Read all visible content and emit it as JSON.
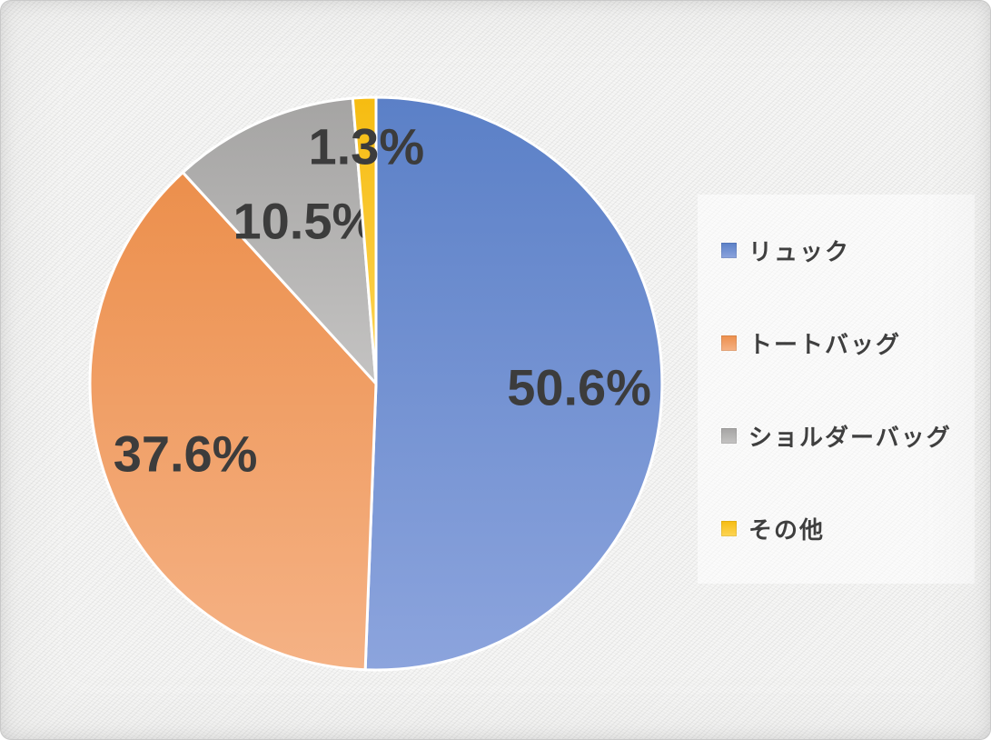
{
  "chart_data": {
    "type": "pie",
    "title": "",
    "labels": [
      "リュック",
      "トートバッグ",
      "ショルダーバッグ",
      "その他"
    ],
    "values": [
      50.6,
      37.6,
      10.5,
      1.3
    ],
    "data_labels": [
      "50.6%",
      "37.6%",
      "10.5%",
      "1.3%"
    ],
    "colors": [
      "#6E92D2",
      "#F09A5E",
      "#B1B0AF",
      "#FAC32A"
    ],
    "gradients": [
      {
        "top": "#5B80C7",
        "bottom": "#8CA4DD"
      },
      {
        "top": "#EC8F4C",
        "bottom": "#F5B285"
      },
      {
        "top": "#A5A4A3",
        "bottom": "#C4C3C2"
      },
      {
        "top": "#F6BC11",
        "bottom": "#FDD556"
      }
    ],
    "legend_position": "right",
    "start_angle_deg": 0,
    "slice_separator_color": "#FFFFFF",
    "data_label_color": "#3C3C3C",
    "legend_text_color": "#3F3F3F"
  }
}
